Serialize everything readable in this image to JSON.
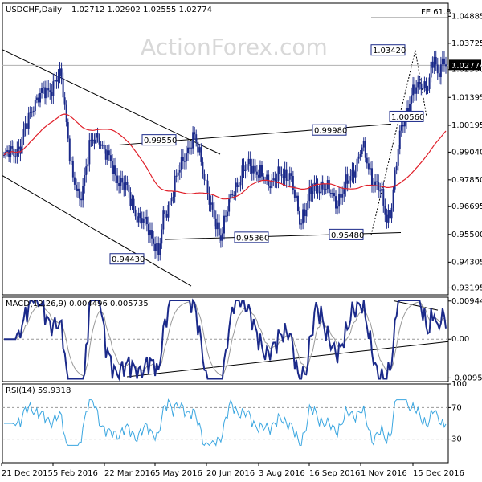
{
  "chart_data": {
    "type": "candlestick",
    "main": {
      "title": "USDCHF,Daily",
      "ohlc_text": "1.02712 1.02902 1.02555 1.02774",
      "current_price_label": "1.02774",
      "y_ticks": [
        "1.04885",
        "1.03725",
        "1.02590",
        "1.01395",
        "1.00195",
        "0.99040",
        "0.97850",
        "0.96695",
        "0.95500",
        "0.94305",
        "0.93195"
      ],
      "ylim": [
        0.929,
        1.0545
      ],
      "fib_label": "FE 61.8",
      "annotations": [
        "1.03420",
        "0.99550",
        "0.99980",
        "1.00560",
        "0.95360",
        "0.95480",
        "0.94430"
      ],
      "watermark": "ActionForex.com",
      "series": [
        {
          "name": "price",
          "color": "#1b2a8a"
        },
        {
          "name": "moving-average",
          "color": "#e0202a"
        }
      ]
    },
    "macd": {
      "title": "MACD(12,26,9) 0.004496 0.005735",
      "y_ticks": [
        "0.009446",
        "0.00",
        "-0.009588"
      ],
      "ylim": [
        -0.0105,
        0.0104
      ]
    },
    "rsi": {
      "title": "RSI(14) 59.9318",
      "y_ticks": [
        "100",
        "70",
        "30",
        "0"
      ],
      "ylim": [
        0,
        100
      ]
    },
    "x_ticks": [
      "21 Dec 2015",
      "5 Feb 2016",
      "22 Mar 2016",
      "5 May 2016",
      "20 Jun 2016",
      "3 Aug 2016",
      "16 Sep 2016",
      "1 Nov 2016",
      "15 Dec 2016"
    ]
  }
}
